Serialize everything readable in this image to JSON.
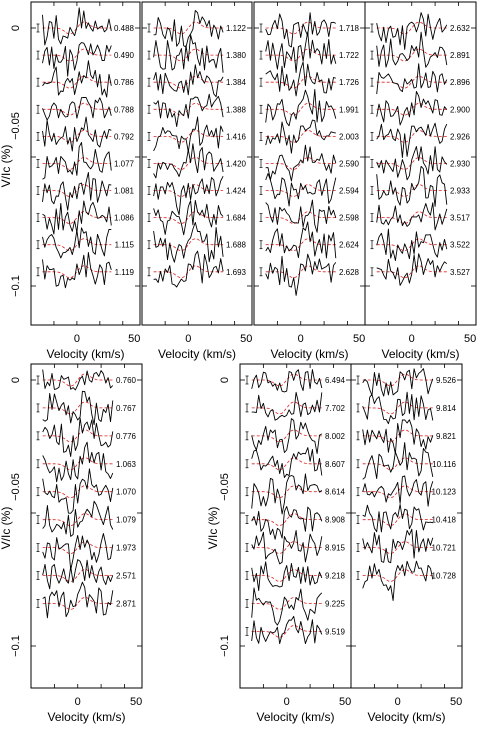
{
  "chart_data": {
    "type": "line",
    "xlabel": "Velocity (km/s)",
    "ylabel": "V/Ic (%)",
    "xlim": [
      -40,
      55
    ],
    "ylim": [
      -0.125,
      0.008
    ],
    "x_ticks": [
      "0",
      "50"
    ],
    "y_ticks": [
      "0",
      "−0.05",
      "−0.1"
    ],
    "groups": [
      {
        "panels": [
          {
            "phases": [
              "0.488",
              "0.490",
              "0.786",
              "0.788",
              "0.792",
              "1.077",
              "1.081",
              "1.086",
              "1.115",
              "1.119"
            ]
          },
          {
            "phases": [
              "1.122",
              "1.380",
              "1.384",
              "1.388",
              "1.416",
              "1.420",
              "1.424",
              "1.684",
              "1.688",
              "1.693"
            ]
          },
          {
            "phases": [
              "1.718",
              "1.722",
              "1.726",
              "1.991",
              "2.003",
              "2.590",
              "2.594",
              "2.598",
              "2.624",
              "2.628"
            ]
          },
          {
            "phases": [
              "2.632",
              "2.891",
              "2.896",
              "2.900",
              "2.926",
              "2.930",
              "2.933",
              "3.517",
              "3.522",
              "3.527"
            ]
          }
        ]
      },
      {
        "panels": [
          {
            "phases": [
              "0.760",
              "0.767",
              "0.776",
              "1.063",
              "1.070",
              "1.079",
              "1.973",
              "2.571",
              "2.871"
            ]
          }
        ]
      },
      {
        "panels": [
          {
            "phases": [
              "6.494",
              "7.702",
              "8.002",
              "8.607",
              "8.614",
              "8.908",
              "8.915",
              "9.218",
              "9.225",
              "9.519"
            ]
          },
          {
            "phases": [
              "9.526",
              "9.814",
              "9.821",
              "10.116",
              "10.123",
              "10.418",
              "10.721",
              "10.728"
            ]
          }
        ]
      }
    ]
  }
}
